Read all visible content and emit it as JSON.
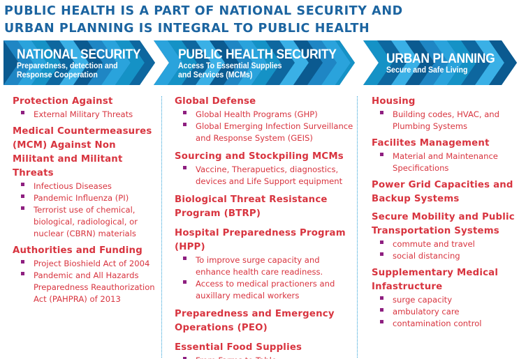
{
  "title": {
    "line1": "PUBLIC HEALTH IS A PART OF NATIONAL SECURITY AND",
    "line2": "URBAN PLANNING IS INTEGRAL TO PUBLIC HEALTH"
  },
  "colors": {
    "title": "#1b64a0",
    "heading": "#d8343f",
    "bullet": "#8e1f80",
    "banner_stripes": [
      "#0b5a90",
      "#1f86c4",
      "#2aa3dc",
      "#1592c6",
      "#0e679f",
      "#3ab0e6"
    ]
  },
  "banners": [
    {
      "heading": "NATIONAL SECURITY",
      "sub": [
        "Preparedness, detection and",
        "Response Cooperation"
      ]
    },
    {
      "heading": "PUBLIC HEALTH SECURITY",
      "sub": [
        "Access To Essential Supplies",
        "and Services (MCMs)"
      ]
    },
    {
      "heading": "URBAN PLANNING",
      "sub": [
        "Secure and Safe Living"
      ]
    }
  ],
  "columns": [
    {
      "sections": [
        {
          "heading": "Protection Against",
          "items": [
            "External Military Threats"
          ]
        },
        {
          "heading": "Medical Countermeasures (MCM) Against Non Militant and Militant Threats",
          "items": [
            "Infectious Diseases",
            "Pandemic Influenza (PI)",
            "Terrorist use of chemical, biological, radiological, or nuclear (CBRN) materials"
          ]
        },
        {
          "heading": "Authorities and Funding",
          "items": [
            "Project Bioshield Act of 2004",
            "Pandemic and All Hazards Preparedness Reauthorization Act (PAHPRA) of 2013"
          ]
        }
      ]
    },
    {
      "sections": [
        {
          "heading": "Global Defense",
          "items": [
            "Global Health Programs (GHP)",
            "Global Emerging Infection Surveillance and Response System (GEIS)"
          ]
        },
        {
          "heading": "Sourcing and Stockpiling MCMs",
          "items": [
            "Vaccine, Therapuetics, diagnostics, devices and Life Support equipment"
          ]
        },
        {
          "heading": "Biological Threat Resistance Program (BTRP)",
          "items": []
        },
        {
          "heading": "Hospital Preparedness Program (HPP)",
          "items": [
            "To improve surge capacity and enhance health care readiness.",
            "Access to medical practioners and auxillary medical workers"
          ]
        },
        {
          "heading": "Preparedness and Emergency Operations (PEO)",
          "items": []
        },
        {
          "heading": "Essential Food Supplies",
          "items": [
            "From Farms to Table"
          ]
        }
      ]
    },
    {
      "sections": [
        {
          "heading": "Housing",
          "items": [
            "Building codes, HVAC, and Plumbing Systems"
          ]
        },
        {
          "heading": "Facilites Management",
          "items": [
            "Material and Maintenance Specifications"
          ]
        },
        {
          "heading": "Power Grid Capacities and Backup Systems",
          "items": []
        },
        {
          "heading": "Secure Mobility and Public Transportation Systems",
          "items": [
            "commute and travel",
            "social distancing"
          ]
        },
        {
          "heading": "Supplementary Medical Infastructure",
          "items": [
            "surge capacity",
            "ambulatory care",
            "contamination control"
          ]
        }
      ]
    }
  ]
}
